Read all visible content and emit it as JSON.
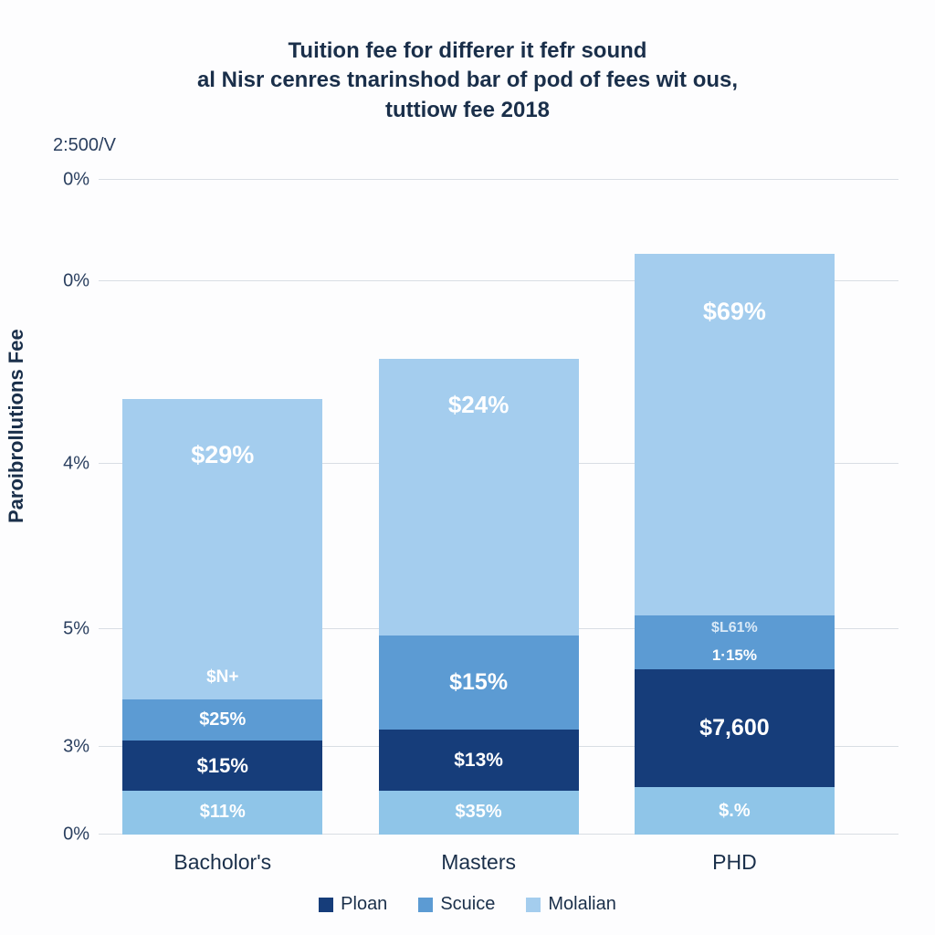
{
  "chart": {
    "type": "stacked-bar",
    "title_lines": [
      "Tuition fee for differer it fefr sound",
      "al Nisr cenres tnarinshod bar of pod of fees wit ous,",
      "tuttiow fee 2018"
    ],
    "title_color": "#1a2f4a",
    "title_fontsize": 24,
    "background_color": "#fdfdfe",
    "corner_label": "2:500/V",
    "ylabel": "Paroibrollutions Fee",
    "ylabel_fontsize": 22,
    "ylabel_color": "#1a2f4a",
    "grid_color": "#d9dee4",
    "yticks": [
      {
        "label": "0%",
        "pos_pct": 0
      },
      {
        "label": "3%",
        "pos_pct": 13
      },
      {
        "label": "5%",
        "pos_pct": 30.5
      },
      {
        "label": "4%",
        "pos_pct": 55
      },
      {
        "label": "0%",
        "pos_pct": 82
      },
      {
        "label": "0%",
        "pos_pct": 97
      }
    ],
    "colors": {
      "light": "#a4cdee",
      "mid": "#5c9bd3",
      "dark": "#163d7a",
      "base": "#8fc5e8"
    },
    "bar_width_pct": 25,
    "bar_gap_pct": 6,
    "groups": [
      {
        "name": "Bacholor's",
        "left_pct": 3,
        "total_height_pct": 64.5,
        "segments": [
          {
            "color_key": "base",
            "h_pct": 6.5,
            "labels": [
              "$11%"
            ],
            "fontsize": 20
          },
          {
            "color_key": "dark",
            "h_pct": 7.5,
            "labels": [
              "$15%"
            ],
            "fontsize": 22
          },
          {
            "color_key": "mid",
            "h_pct": 6.0,
            "labels": [
              "$25%"
            ],
            "fontsize": 20
          },
          {
            "color_key": "light",
            "h_pct": 44.5,
            "labels": [
              "$N+",
              "$29%"
            ],
            "top_label": "$29%",
            "sub_label": "$N+",
            "fontsize": 26
          }
        ]
      },
      {
        "name": "Masters",
        "left_pct": 35,
        "total_height_pct": 70.5,
        "segments": [
          {
            "color_key": "base",
            "h_pct": 6.5,
            "labels": [
              "$35%"
            ],
            "fontsize": 20
          },
          {
            "color_key": "dark",
            "h_pct": 9.0,
            "labels": [
              "$13%"
            ],
            "fontsize": 21
          },
          {
            "color_key": "mid",
            "h_pct": 14.0,
            "labels": [
              "$15%"
            ],
            "fontsize": 25
          },
          {
            "color_key": "light",
            "h_pct": 41.0,
            "labels": [
              "$24%"
            ],
            "fontsize": 26
          }
        ]
      },
      {
        "name": "PHD",
        "left_pct": 67,
        "total_height_pct": 86,
        "segments": [
          {
            "color_key": "base",
            "h_pct": 7.0,
            "labels": [
              "$.%"
            ],
            "fontsize": 20
          },
          {
            "color_key": "dark",
            "h_pct": 17.5,
            "labels": [
              "$7,600"
            ],
            "fontsize": 25
          },
          {
            "color_key": "mid",
            "h_pct": 8.0,
            "labels": [
              "$L61%",
              "1·15%"
            ],
            "fontsize": 16,
            "color_text_override": "#e9f2fa"
          },
          {
            "color_key": "light",
            "h_pct": 53.5,
            "labels": [
              "$69%"
            ],
            "fontsize": 27
          }
        ]
      }
    ],
    "legend": [
      {
        "label": "Ploan",
        "color_key": "dark"
      },
      {
        "label": "Scuice",
        "color_key": "mid"
      },
      {
        "label": "Molalian",
        "color_key": "light"
      }
    ]
  }
}
